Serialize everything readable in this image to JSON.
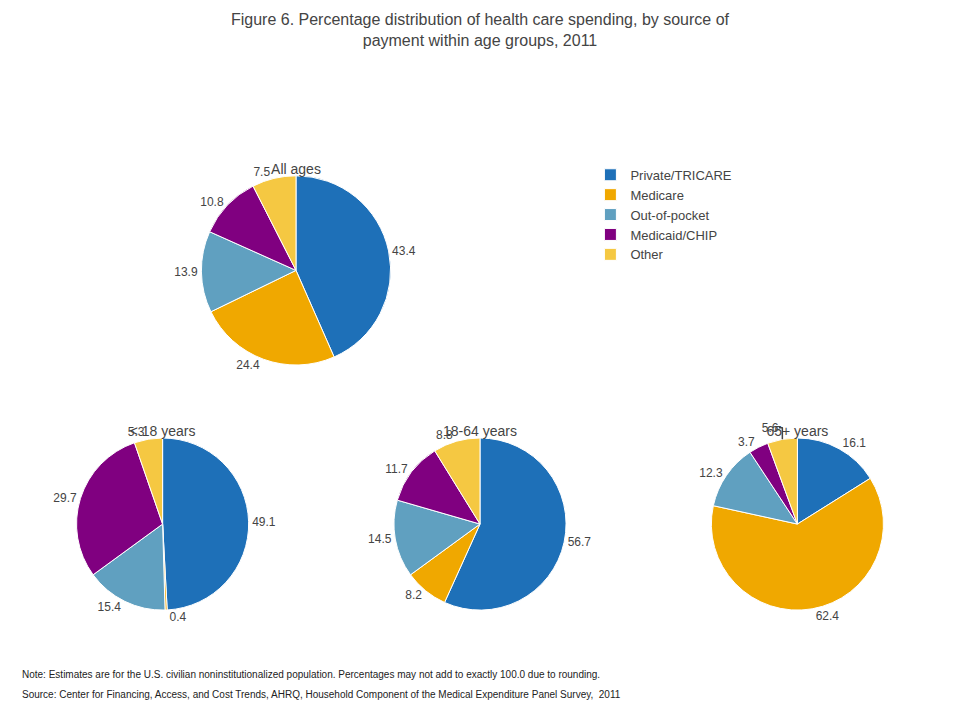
{
  "title": "Figure 6. Percentage distribution of health care spending, by source of\npayment within age groups, 2011",
  "annotations": [
    "Note: Estimates are for the U.S. civilian noninstitutionalized population. Percentages may not add to exactly 100.0 due to rounding.",
    "Source: Center for Financing, Access, and Cost Trends, AHRQ, Household Component of the Medical Expenditure Panel Survey,  2011"
  ],
  "legend": "upper right",
  "chart_data": [
    {
      "type": "pie",
      "title": "All ages",
      "categories": [
        "Private/TRICARE",
        "Medicare",
        "Out-of-pocket",
        "Medicaid/CHIP",
        "Other"
      ],
      "values": [
        43.4,
        24.4,
        13.9,
        10.8,
        7.5
      ],
      "colors": [
        "#1e70b8",
        "#f0a800",
        "#60a0c0",
        "#800080",
        "#f5c842"
      ],
      "data_labels": true
    },
    {
      "type": "pie",
      "title": "< 18 years",
      "categories": [
        "Private/TRICARE",
        "Medicare",
        "Out-of-pocket",
        "Medicaid/CHIP",
        "Other"
      ],
      "values": [
        49.1,
        0.4,
        15.4,
        29.7,
        5.3
      ],
      "colors": [
        "#1e70b8",
        "#f0a800",
        "#60a0c0",
        "#800080",
        "#f5c842"
      ],
      "data_labels": true
    },
    {
      "type": "pie",
      "title": "18-64 years",
      "categories": [
        "Private/TRICARE",
        "Medicare",
        "Out-of-pocket",
        "Medicaid/CHIP",
        "Other"
      ],
      "values": [
        56.7,
        8.2,
        14.5,
        11.7,
        8.8
      ],
      "colors": [
        "#1e70b8",
        "#f0a800",
        "#60a0c0",
        "#800080",
        "#f5c842"
      ],
      "data_labels": true
    },
    {
      "type": "pie",
      "title": "65+ years",
      "categories": [
        "Private/TRICARE",
        "Medicare",
        "Out-of-pocket",
        "Medicaid/CHIP",
        "Other"
      ],
      "values": [
        16.1,
        62.4,
        12.3,
        3.7,
        5.6
      ],
      "colors": [
        "#1e70b8",
        "#f0a800",
        "#60a0c0",
        "#800080",
        "#f5c842"
      ],
      "data_labels": true
    }
  ]
}
